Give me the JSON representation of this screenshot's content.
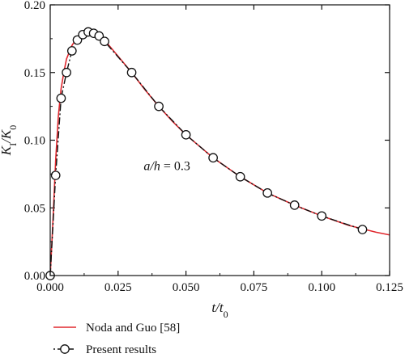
{
  "chart_data": {
    "type": "line",
    "xlabel": "t/t0",
    "ylabel": "KI/K0",
    "xlim": [
      0.0,
      0.125
    ],
    "ylim": [
      0.0,
      0.2
    ],
    "xticks": [
      "0.000",
      "0.025",
      "0.050",
      "0.075",
      "0.100",
      "0.125"
    ],
    "yticks": [
      "0.00",
      "0.05",
      "0.10",
      "0.15",
      "0.20"
    ],
    "grid": false,
    "legend_position": "bottom, below plot",
    "annotation": "a/h = 0.3",
    "series": [
      {
        "name": "Noda and Guo [58]",
        "color": "#e0282e",
        "style": "solid",
        "x": [
          0.0,
          0.001,
          0.002,
          0.003,
          0.004,
          0.005,
          0.006,
          0.008,
          0.01,
          0.012,
          0.014,
          0.016,
          0.018,
          0.02,
          0.025,
          0.03,
          0.035,
          0.04,
          0.045,
          0.05,
          0.06,
          0.07,
          0.08,
          0.09,
          0.1,
          0.11,
          0.12,
          0.125
        ],
        "y": [
          0.0,
          0.04,
          0.085,
          0.118,
          0.138,
          0.15,
          0.16,
          0.17,
          0.176,
          0.179,
          0.18,
          0.179,
          0.177,
          0.174,
          0.162,
          0.15,
          0.137,
          0.125,
          0.114,
          0.104,
          0.087,
          0.073,
          0.061,
          0.052,
          0.044,
          0.037,
          0.032,
          0.03
        ]
      },
      {
        "name": "Present results",
        "color": "#111111",
        "style": "dash-dot",
        "marker": "open-circle",
        "x": [
          0.0,
          0.002,
          0.004,
          0.006,
          0.008,
          0.01,
          0.012,
          0.014,
          0.016,
          0.018,
          0.02,
          0.03,
          0.04,
          0.05,
          0.06,
          0.07,
          0.08,
          0.09,
          0.1,
          0.115
        ],
        "y": [
          0.0,
          0.074,
          0.131,
          0.15,
          0.166,
          0.174,
          0.178,
          0.18,
          0.179,
          0.177,
          0.173,
          0.15,
          0.125,
          0.104,
          0.087,
          0.073,
          0.061,
          0.052,
          0.044,
          0.034
        ]
      }
    ]
  }
}
